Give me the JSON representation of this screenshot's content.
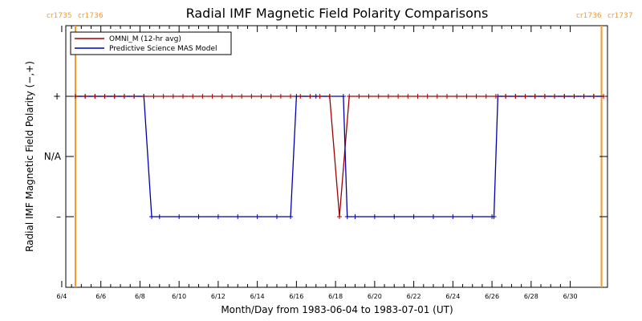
{
  "chart_data": {
    "type": "line",
    "title": "Radial IMF Magnetic Field Polarity Comparisons",
    "xlabel": "Month/Day from 1983-06-04 to 1983-07-01 (UT)",
    "ylabel": "Radial IMF Magnetic Field Polarity (−,+)",
    "xlim": [
      0.0,
      27.7
    ],
    "ylim": [
      -2,
      2
    ],
    "x_unit": "days since 1983-06-04",
    "x_ticks": [
      {
        "x": 0,
        "label": "6/4"
      },
      {
        "x": 2,
        "label": "6/6"
      },
      {
        "x": 4,
        "label": "6/8"
      },
      {
        "x": 6,
        "label": "6/10"
      },
      {
        "x": 8,
        "label": "6/12"
      },
      {
        "x": 10,
        "label": "6/14"
      },
      {
        "x": 12,
        "label": "6/16"
      },
      {
        "x": 14,
        "label": "6/18"
      },
      {
        "x": 16,
        "label": "6/20"
      },
      {
        "x": 18,
        "label": "6/22"
      },
      {
        "x": 20,
        "label": "6/24"
      },
      {
        "x": 22,
        "label": "6/26"
      },
      {
        "x": 24,
        "label": "6/28"
      },
      {
        "x": 26,
        "label": "6/30"
      }
    ],
    "y_ticks": [
      {
        "y": 1,
        "label": "+"
      },
      {
        "y": 0,
        "label": "N/A"
      },
      {
        "y": -1,
        "label": "–"
      }
    ],
    "carrington_markers": [
      {
        "x": 0.7,
        "left_label": "cr1735",
        "right_label": "cr1736"
      },
      {
        "x": 27.6,
        "left_label": "cr1736",
        "right_label": "cr1737"
      }
    ],
    "legend": {
      "position": "top-left"
    },
    "series": [
      {
        "name": "OMNI_M (12-hr avg)",
        "color": "#a00000",
        "marker": "+",
        "points": [
          [
            0.7,
            1
          ],
          [
            1.2,
            1
          ],
          [
            1.7,
            1
          ],
          [
            2.2,
            1
          ],
          [
            2.7,
            1
          ],
          [
            3.2,
            1
          ],
          [
            3.7,
            1
          ],
          [
            4.2,
            1
          ],
          [
            4.7,
            1
          ],
          [
            5.2,
            1
          ],
          [
            5.7,
            1
          ],
          [
            6.2,
            1
          ],
          [
            6.7,
            1
          ],
          [
            7.2,
            1
          ],
          [
            7.7,
            1
          ],
          [
            8.2,
            1
          ],
          [
            8.7,
            1
          ],
          [
            9.2,
            1
          ],
          [
            9.7,
            1
          ],
          [
            10.2,
            1
          ],
          [
            10.7,
            1
          ],
          [
            11.2,
            1
          ],
          [
            11.7,
            1
          ],
          [
            12.2,
            1
          ],
          [
            12.7,
            1
          ],
          [
            13.2,
            1
          ],
          [
            13.7,
            1
          ],
          [
            14.2,
            -1
          ],
          [
            14.7,
            1
          ],
          [
            15.2,
            1
          ],
          [
            15.7,
            1
          ],
          [
            16.2,
            1
          ],
          [
            16.7,
            1
          ],
          [
            17.2,
            1
          ],
          [
            17.7,
            1
          ],
          [
            18.2,
            1
          ],
          [
            18.7,
            1
          ],
          [
            19.2,
            1
          ],
          [
            19.7,
            1
          ],
          [
            20.2,
            1
          ],
          [
            20.7,
            1
          ],
          [
            21.2,
            1
          ],
          [
            21.7,
            1
          ],
          [
            22.2,
            1
          ],
          [
            22.7,
            1
          ],
          [
            23.2,
            1
          ],
          [
            23.7,
            1
          ],
          [
            24.2,
            1
          ],
          [
            24.7,
            1
          ],
          [
            25.2,
            1
          ],
          [
            25.7,
            1
          ],
          [
            26.2,
            1
          ],
          [
            26.7,
            1
          ],
          [
            27.2,
            1
          ],
          [
            27.7,
            1
          ]
        ]
      },
      {
        "name": "Predictive Science MAS Model",
        "color": "#0000aa",
        "marker": "+",
        "points": [
          [
            0.7,
            1
          ],
          [
            1.2,
            1
          ],
          [
            1.7,
            1
          ],
          [
            2.2,
            1
          ],
          [
            2.7,
            1
          ],
          [
            3.2,
            1
          ],
          [
            3.7,
            1
          ],
          [
            4.2,
            1
          ],
          [
            4.6,
            -1
          ],
          [
            5.0,
            -1
          ],
          [
            6.0,
            -1
          ],
          [
            7.0,
            -1
          ],
          [
            8.0,
            -1
          ],
          [
            9.0,
            -1
          ],
          [
            10.0,
            -1
          ],
          [
            11.0,
            -1
          ],
          [
            11.7,
            -1
          ],
          [
            12.0,
            1
          ],
          [
            13.0,
            1
          ],
          [
            13.7,
            1
          ],
          [
            14.4,
            1
          ],
          [
            14.6,
            -1
          ],
          [
            15.0,
            -1
          ],
          [
            16.0,
            -1
          ],
          [
            17.0,
            -1
          ],
          [
            18.0,
            -1
          ],
          [
            19.0,
            -1
          ],
          [
            20.0,
            -1
          ],
          [
            21.0,
            -1
          ],
          [
            22.0,
            -1
          ],
          [
            22.1,
            -1
          ],
          [
            22.3,
            1
          ],
          [
            22.7,
            1
          ],
          [
            23.2,
            1
          ],
          [
            23.7,
            1
          ],
          [
            24.2,
            1
          ],
          [
            24.7,
            1
          ],
          [
            25.2,
            1
          ],
          [
            25.7,
            1
          ],
          [
            26.2,
            1
          ],
          [
            26.7,
            1
          ],
          [
            27.2,
            1
          ],
          [
            27.7,
            1
          ]
        ]
      }
    ]
  }
}
